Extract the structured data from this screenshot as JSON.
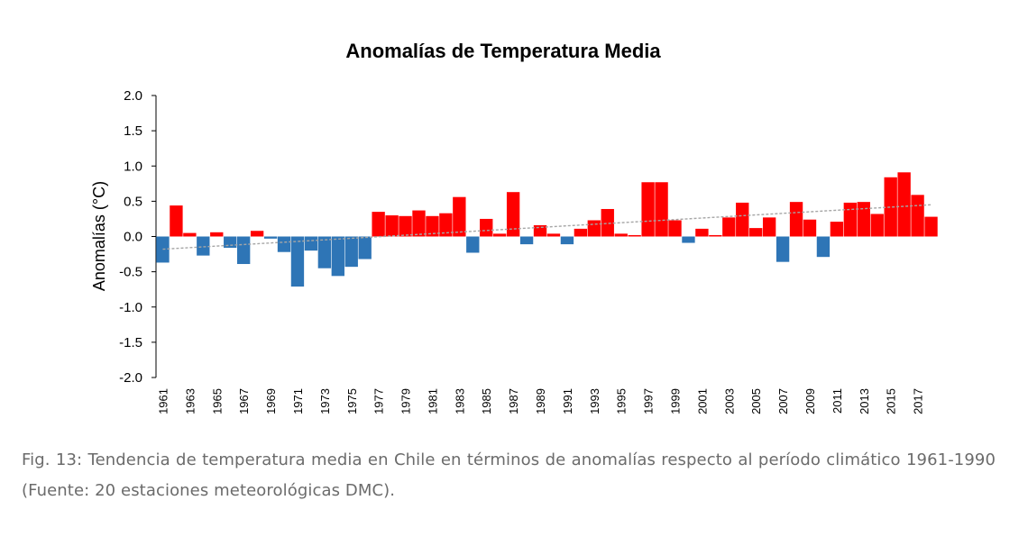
{
  "caption": "Fig. 13: Tendencia de temperatura media en Chile en términos de anomalías respecto al período climático 1961-1990 (Fuente: 20 estaciones meteorológicas DMC).",
  "chart_data": {
    "type": "bar",
    "title": "Anomalías de Temperatura Media",
    "xlabel": "",
    "ylabel": "Anomalías (°C)",
    "ylim": [
      -2.0,
      2.0
    ],
    "yticks": [
      "2.0",
      "1.5",
      "1.0",
      "0.5",
      "0.0",
      "-0.5",
      "-1.0",
      "-1.5",
      "-2.0"
    ],
    "categories": [
      "1961",
      "1962",
      "1963",
      "1964",
      "1965",
      "1966",
      "1967",
      "1968",
      "1969",
      "1970",
      "1971",
      "1972",
      "1973",
      "1974",
      "1975",
      "1976",
      "1977",
      "1978",
      "1979",
      "1980",
      "1981",
      "1982",
      "1983",
      "1984",
      "1985",
      "1986",
      "1987",
      "1988",
      "1989",
      "1990",
      "1991",
      "1992",
      "1993",
      "1994",
      "1995",
      "1996",
      "1997",
      "1998",
      "1999",
      "2000",
      "2001",
      "2002",
      "2003",
      "2004",
      "2005",
      "2006",
      "2007",
      "2008",
      "2009",
      "2010",
      "2011",
      "2012",
      "2013",
      "2014",
      "2015",
      "2016",
      "2017",
      "2018"
    ],
    "xtick_labels": [
      "1961",
      "1963",
      "1965",
      "1967",
      "1969",
      "1971",
      "1973",
      "1975",
      "1977",
      "1979",
      "1981",
      "1983",
      "1985",
      "1987",
      "1989",
      "1991",
      "1993",
      "1995",
      "1997",
      "1999",
      "2001",
      "2003",
      "2005",
      "2007",
      "2009",
      "2011",
      "2013",
      "2015",
      "2017"
    ],
    "values": [
      -0.37,
      0.44,
      0.05,
      -0.27,
      0.06,
      -0.16,
      -0.39,
      0.08,
      -0.03,
      -0.22,
      -0.71,
      -0.2,
      -0.45,
      -0.56,
      -0.43,
      -0.32,
      0.35,
      0.3,
      0.29,
      0.37,
      0.29,
      0.33,
      0.56,
      -0.23,
      0.25,
      0.04,
      0.63,
      -0.11,
      0.16,
      0.04,
      -0.11,
      0.11,
      0.23,
      0.39,
      0.04,
      0.02,
      0.77,
      0.77,
      0.23,
      -0.09,
      0.11,
      0.02,
      0.27,
      0.48,
      0.12,
      0.27,
      -0.36,
      0.49,
      0.24,
      -0.29,
      0.21,
      0.48,
      0.49,
      0.32,
      0.84,
      0.91,
      0.59,
      0.28
    ],
    "colors": {
      "positive": "#ff0000",
      "negative": "#2e75b6",
      "trend": "#a6a6a6",
      "axis": "#000000"
    },
    "trendline": {
      "type": "linear",
      "style": "dashed",
      "start": -0.18,
      "end": 0.45
    },
    "grid": false,
    "legend": "none"
  }
}
